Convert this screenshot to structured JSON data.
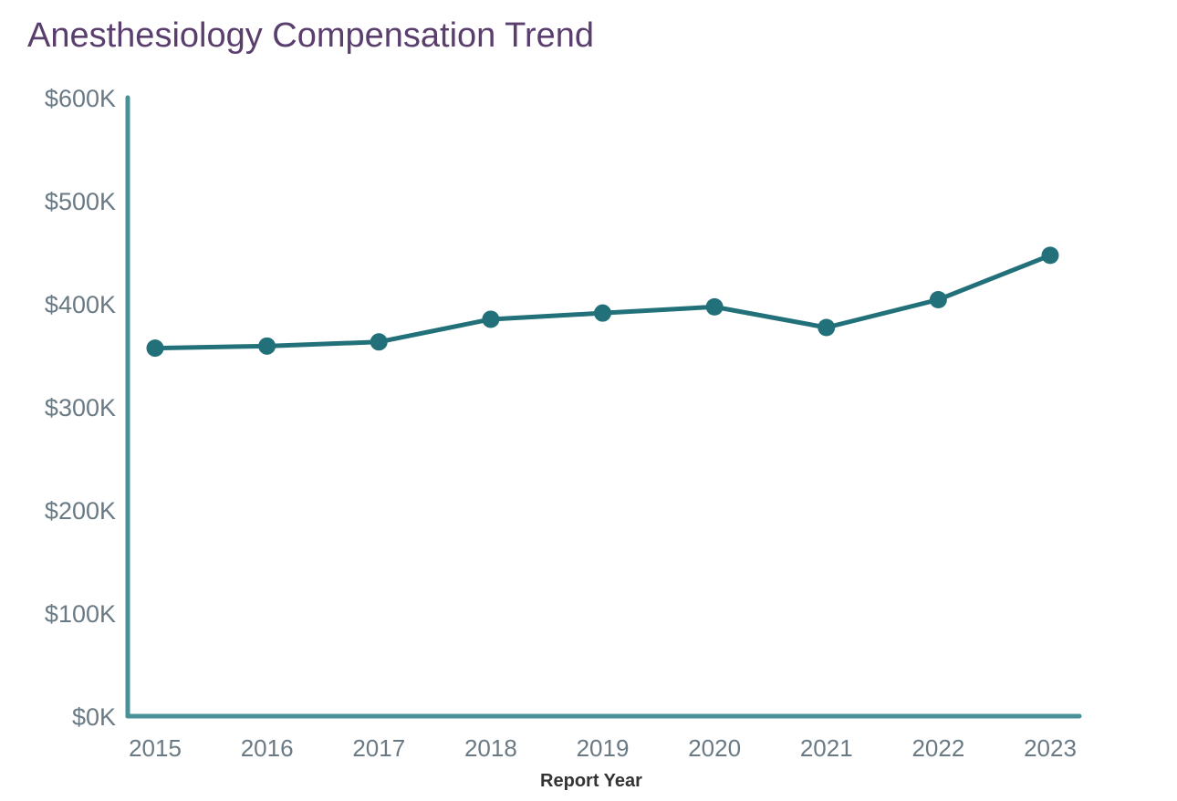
{
  "chart_data": {
    "type": "line",
    "title": "Anesthesiology Compensation Trend",
    "xlabel": "Report Year",
    "ylabel": "",
    "categories": [
      "2015",
      "2016",
      "2017",
      "2018",
      "2019",
      "2020",
      "2021",
      "2022",
      "2023"
    ],
    "values": [
      357,
      359,
      363,
      385,
      391,
      397,
      377,
      404,
      447
    ],
    "value_unit": "$K",
    "ylim": [
      0,
      600
    ],
    "yticks": [
      0,
      100,
      200,
      300,
      400,
      500,
      600
    ],
    "ytick_labels": [
      "$0K",
      "$100K",
      "$200K",
      "$300K",
      "$400K",
      "$500K",
      "$600K"
    ],
    "grid": false,
    "legend": "none",
    "colors": {
      "line": "#22707a",
      "axis": "#4a9097",
      "title": "#5a3e6e"
    }
  }
}
